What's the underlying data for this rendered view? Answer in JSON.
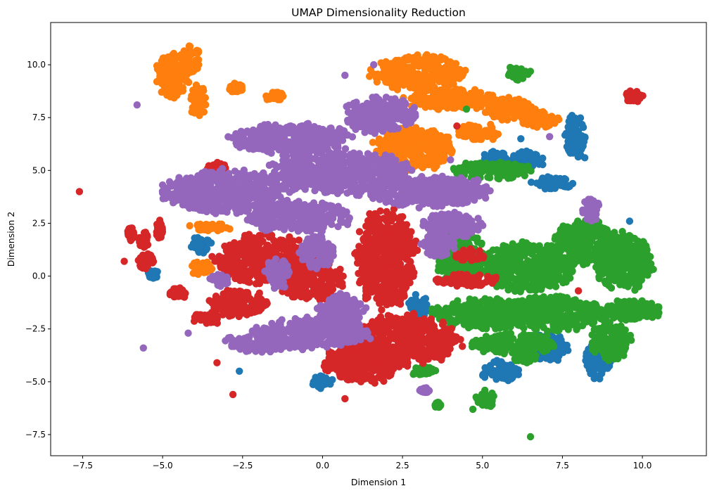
{
  "chart_data": {
    "type": "scatter",
    "title": "UMAP Dimensionality Reduction",
    "xlabel": "Dimension 1",
    "ylabel": "Dimension 2",
    "xlim": [
      -8.5,
      12.0
    ],
    "ylim": [
      -8.5,
      12.0
    ],
    "xticks": [
      -7.5,
      -5.0,
      -2.5,
      0.0,
      2.5,
      5.0,
      7.5,
      10.0
    ],
    "yticks": [
      -7.5,
      -5.0,
      -2.5,
      0.0,
      2.5,
      5.0,
      7.5,
      10.0
    ],
    "xtick_labels": [
      "−7.5",
      "−5.0",
      "−2.5",
      "0.0",
      "2.5",
      "5.0",
      "7.5",
      "10.0"
    ],
    "ytick_labels": [
      "−7.5",
      "−5.0",
      "−2.5",
      "0.0",
      "2.5",
      "5.0",
      "7.5",
      "10.0"
    ],
    "grid": false,
    "legend": false,
    "series": [
      {
        "color": "#1f77b4",
        "clusters": [
          [
            7.9,
            6.6,
            0.35,
            1.0
          ],
          [
            5.4,
            5.5,
            0.4,
            0.5
          ],
          [
            6.4,
            5.5,
            0.5,
            0.4
          ],
          [
            7.2,
            4.4,
            0.6,
            0.3
          ],
          [
            8.6,
            -3.9,
            0.4,
            0.9
          ],
          [
            5.6,
            -4.5,
            0.6,
            0.5
          ],
          [
            7.0,
            -3.4,
            0.7,
            0.6
          ],
          [
            3.0,
            -1.5,
            0.3,
            0.6
          ],
          [
            0.0,
            -5.0,
            0.3,
            0.3
          ],
          [
            -5.3,
            0.1,
            0.15,
            0.2
          ],
          [
            -3.8,
            1.5,
            0.3,
            0.4
          ]
        ],
        "points": [
          [
            9.6,
            2.6
          ],
          [
            8.2,
            5.6
          ],
          [
            -2.6,
            -4.5
          ],
          [
            6.2,
            6.5
          ]
        ]
      },
      {
        "color": "#ff7f0e",
        "clusters": [
          [
            -4.7,
            9.5,
            0.5,
            1.0
          ],
          [
            -4.1,
            10.3,
            0.3,
            0.6
          ],
          [
            -3.9,
            8.3,
            0.25,
            0.7
          ],
          [
            3.0,
            9.6,
            1.4,
            0.8
          ],
          [
            4.0,
            8.4,
            1.4,
            0.5
          ],
          [
            5.8,
            7.9,
            0.8,
            0.5
          ],
          [
            6.8,
            7.4,
            0.6,
            0.4
          ],
          [
            2.8,
            6.0,
            1.2,
            1.0
          ],
          [
            4.9,
            6.8,
            0.6,
            0.4
          ],
          [
            -2.7,
            8.9,
            0.2,
            0.2
          ],
          [
            -1.5,
            8.5,
            0.3,
            0.2
          ],
          [
            -3.6,
            2.3,
            0.7,
            0.2
          ],
          [
            -3.8,
            0.4,
            0.35,
            0.3
          ]
        ],
        "points": []
      },
      {
        "color": "#2ca02c",
        "clusters": [
          [
            9.4,
            0.7,
            0.9,
            1.3
          ],
          [
            8.2,
            1.6,
            0.9,
            1.0
          ],
          [
            6.4,
            0.4,
            1.4,
            1.1
          ],
          [
            5.2,
            -1.8,
            1.7,
            0.7
          ],
          [
            7.3,
            -1.8,
            1.5,
            0.8
          ],
          [
            9.7,
            -1.6,
            0.9,
            0.5
          ],
          [
            9.0,
            -3.1,
            0.6,
            0.9
          ],
          [
            6.0,
            -3.2,
            1.3,
            0.5
          ],
          [
            4.3,
            0.9,
            0.7,
            1.2
          ],
          [
            5.3,
            5.0,
            1.2,
            0.4
          ],
          [
            6.1,
            9.6,
            0.4,
            0.3
          ],
          [
            5.1,
            -5.8,
            0.3,
            0.4
          ],
          [
            3.6,
            -6.1,
            0.1,
            0.12
          ],
          [
            3.1,
            -4.5,
            0.4,
            0.2
          ],
          [
            6.3,
            -3.8,
            0.4,
            0.3
          ]
        ],
        "points": [
          [
            6.5,
            -7.6
          ],
          [
            4.7,
            -6.3
          ],
          [
            4.5,
            7.9
          ]
        ]
      },
      {
        "color": "#d62728",
        "clusters": [
          [
            2.6,
            -3.0,
            1.6,
            1.1
          ],
          [
            1.3,
            -4.1,
            1.2,
            0.9
          ],
          [
            2.0,
            0.8,
            0.9,
            2.2
          ],
          [
            -1.8,
            0.8,
            1.5,
            1.1
          ],
          [
            -2.6,
            -1.3,
            0.9,
            0.6
          ],
          [
            -0.4,
            -0.2,
            1.0,
            0.9
          ],
          [
            4.5,
            -0.2,
            1.0,
            0.3
          ],
          [
            4.6,
            1.0,
            0.5,
            0.3
          ],
          [
            -4.5,
            -0.8,
            0.3,
            0.25
          ],
          [
            -5.5,
            0.7,
            0.25,
            0.4
          ],
          [
            -5.6,
            1.7,
            0.15,
            0.4
          ],
          [
            -5.1,
            2.2,
            0.1,
            0.4
          ],
          [
            -6.0,
            2.0,
            0.1,
            0.3
          ],
          [
            9.7,
            8.5,
            0.3,
            0.25
          ],
          [
            -3.3,
            5.1,
            0.3,
            0.3
          ],
          [
            -3.6,
            -2.0,
            0.4,
            0.3
          ]
        ],
        "points": [
          [
            -7.6,
            4.0
          ],
          [
            -6.2,
            0.7
          ],
          [
            -2.8,
            -5.6
          ],
          [
            -3.3,
            -4.1
          ],
          [
            0.7,
            -5.8
          ],
          [
            1.2,
            -5.0
          ],
          [
            8.0,
            -0.7
          ],
          [
            4.2,
            7.1
          ]
        ]
      },
      {
        "color": "#9467bd",
        "clusters": [
          [
            -3.0,
            4.0,
            1.9,
            1.0
          ],
          [
            0.5,
            4.9,
            2.1,
            1.0
          ],
          [
            -1.0,
            6.5,
            1.8,
            0.7
          ],
          [
            1.8,
            7.6,
            1.1,
            0.8
          ],
          [
            3.3,
            4.0,
            1.9,
            0.7
          ],
          [
            -0.8,
            2.8,
            1.6,
            0.7
          ],
          [
            4.0,
            2.4,
            0.9,
            0.6
          ],
          [
            3.6,
            1.4,
            0.5,
            0.5
          ],
          [
            -0.2,
            1.1,
            0.5,
            0.8
          ],
          [
            -0.3,
            -2.7,
            1.7,
            0.7
          ],
          [
            -2.0,
            -3.1,
            1.0,
            0.5
          ],
          [
            0.6,
            -1.6,
            0.7,
            0.7
          ],
          [
            -1.4,
            0.1,
            0.4,
            0.7
          ],
          [
            -3.2,
            -0.2,
            0.3,
            0.3
          ],
          [
            8.4,
            3.2,
            0.3,
            0.6
          ],
          [
            3.2,
            -5.4,
            0.15,
            0.12
          ]
        ],
        "points": [
          [
            -5.8,
            8.1
          ],
          [
            -5.6,
            -3.4
          ],
          [
            -4.2,
            -2.7
          ],
          [
            0.7,
            9.5
          ],
          [
            1.6,
            10.0
          ],
          [
            7.1,
            6.6
          ],
          [
            4.0,
            5.5
          ]
        ]
      }
    ]
  }
}
